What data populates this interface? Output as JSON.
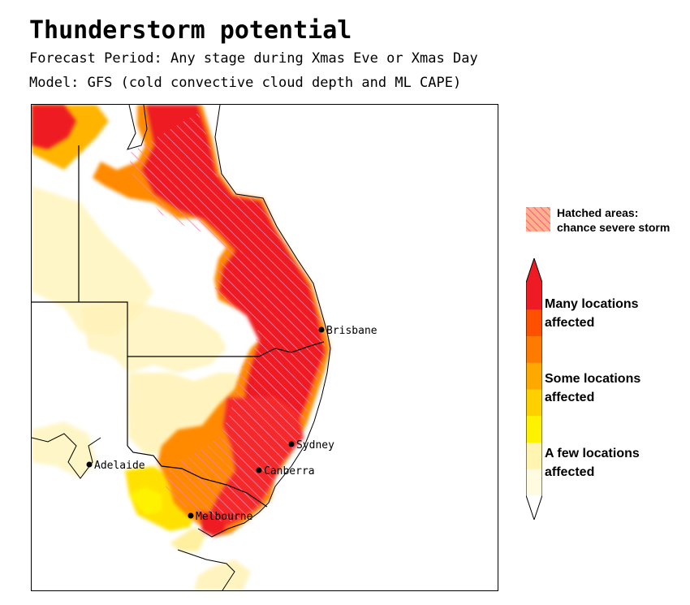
{
  "header": {
    "title": "Thunderstorm potential",
    "forecast_period": "Forecast Period:  Any stage during Xmas Eve or Xmas Day",
    "model": "Model:  GFS (cold convective cloud depth and ML CAPE)"
  },
  "map": {
    "region": "Eastern Australia",
    "cities": [
      {
        "name": "Brisbane"
      },
      {
        "name": "Sydney"
      },
      {
        "name": "Canberra"
      },
      {
        "name": "Adelaide"
      },
      {
        "name": "Melbourne"
      }
    ]
  },
  "legend": {
    "hatched_title": "Hatched areas:",
    "hatched_desc": "chance severe storm",
    "levels": [
      {
        "label_line1": "Many locations",
        "label_line2": "affected"
      },
      {
        "label_line1": "Some locations",
        "label_line2": "affected"
      },
      {
        "label_line1": "A few locations",
        "label_line2": "affected"
      }
    ],
    "colors": [
      "#fffbe0",
      "#fff5b0",
      "#fff200",
      "#ffd000",
      "#ffa800",
      "#ff7a00",
      "#ff5000",
      "#ee1b24"
    ],
    "hatch_color": "#ff6fa0"
  }
}
